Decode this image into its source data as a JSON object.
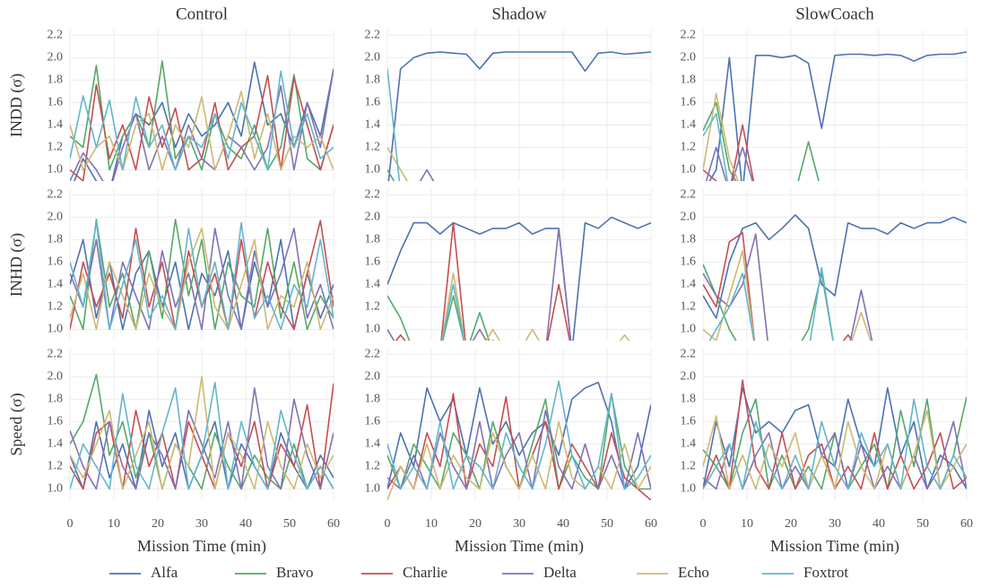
{
  "chart_data": {
    "type": "line",
    "columns": [
      "Control",
      "Shadow",
      "SlowCoach"
    ],
    "rows": [
      "INDD (σ)",
      "INHD (σ)",
      "Speed (σ)"
    ],
    "xlabel": "Mission Time (min)",
    "x": [
      0,
      3,
      6,
      9,
      12,
      15,
      18,
      21,
      24,
      27,
      30,
      33,
      36,
      39,
      42,
      45,
      48,
      51,
      54,
      57,
      60
    ],
    "xlim": [
      0,
      60
    ],
    "xticks": [
      0,
      10,
      20,
      30,
      40,
      50,
      60
    ],
    "ylim": [
      0.9,
      2.25
    ],
    "yticks": [
      {
        "value": 1,
        "label": "1.0"
      },
      1.2,
      1.4,
      1.6,
      1.8,
      {
        "value": 2,
        "label": "2.0"
      },
      2.2
    ],
    "grid": true,
    "series": [
      {
        "name": "Alfa",
        "color": "#4c72b0"
      },
      {
        "name": "Bravo",
        "color": "#55a868"
      },
      {
        "name": "Charlie",
        "color": "#c44e52"
      },
      {
        "name": "Delta",
        "color": "#8172b2"
      },
      {
        "name": "Echo",
        "color": "#ccb974"
      },
      {
        "name": "Foxtrot",
        "color": "#64b5cd"
      }
    ],
    "panels": [
      [
        [
          0.8,
          1.1,
          0.9,
          0.8,
          1.3,
          1.5,
          1.4,
          1.6,
          1.2,
          1.5,
          1.3,
          1.4,
          1.6,
          1.3,
          1.96,
          1.4,
          1.5,
          1.2,
          1.6,
          1.3,
          1.9
        ],
        [
          1.3,
          1.2,
          1.93,
          1.0,
          1.3,
          1.5,
          1.2,
          1.97,
          1.1,
          1.3,
          1.0,
          1.5,
          1.2,
          1.1,
          1.4,
          1.0,
          1.2,
          1.85,
          1.1,
          1.0,
          1.4
        ],
        [
          1.0,
          0.9,
          1.76,
          1.1,
          1.4,
          1.0,
          1.65,
          1.2,
          1.55,
          1.0,
          1.1,
          1.6,
          1.0,
          1.2,
          1.3,
          1.84,
          1.0,
          1.82,
          1.4,
          1.0,
          1.4
        ],
        [
          0.9,
          1.15,
          1.0,
          0.8,
          1.2,
          1.5,
          1.0,
          1.3,
          1.0,
          1.4,
          1.1,
          1.0,
          1.3,
          1.2,
          1.0,
          1.2,
          1.75,
          1.0,
          1.6,
          1.2,
          1.9
        ],
        [
          1.4,
          1.0,
          1.2,
          1.3,
          1.0,
          1.4,
          1.5,
          1.0,
          1.4,
          1.2,
          1.65,
          1.0,
          1.3,
          1.7,
          1.1,
          1.5,
          1.0,
          1.3,
          1.2,
          1.3,
          1.0
        ],
        [
          1.1,
          1.66,
          1.2,
          1.62,
          1.0,
          1.65,
          1.2,
          1.4,
          1.0,
          1.3,
          1.2,
          1.5,
          1.1,
          1.6,
          1.3,
          1.0,
          1.88,
          1.2,
          1.5,
          1.1,
          1.2
        ]
      ],
      [
        [
          0.8,
          1.9,
          2.0,
          2.04,
          2.05,
          2.04,
          2.03,
          1.9,
          2.04,
          2.05,
          2.05,
          2.05,
          2.05,
          2.05,
          2.05,
          1.88,
          2.04,
          2.05,
          2.03,
          2.04,
          2.05
        ],
        [
          1.0,
          0.8,
          0.8,
          0.8,
          0.8,
          0.8,
          0.8,
          0.8,
          0.8,
          0.8,
          0.8,
          0.8,
          0.8,
          0.8,
          0.8,
          0.8,
          0.8,
          0.8,
          0.8,
          0.8,
          0.8
        ],
        [
          0.8,
          0.8,
          0.8,
          0.8,
          0.8,
          0.8,
          0.8,
          0.8,
          0.8,
          0.8,
          0.8,
          0.8,
          0.8,
          0.8,
          0.8,
          0.8,
          0.8,
          0.8,
          0.8,
          0.8,
          0.8
        ],
        [
          0.8,
          0.8,
          0.8,
          1.0,
          0.8,
          0.8,
          0.8,
          0.8,
          0.8,
          0.8,
          0.8,
          0.8,
          0.8,
          0.8,
          0.8,
          0.8,
          0.8,
          0.8,
          0.8,
          0.8,
          0.8
        ],
        [
          1.2,
          1.0,
          0.8,
          0.8,
          0.8,
          0.8,
          0.8,
          0.8,
          0.8,
          0.8,
          0.8,
          0.8,
          0.8,
          0.8,
          0.8,
          0.8,
          0.8,
          0.8,
          0.8,
          0.8,
          0.8
        ],
        [
          1.9,
          0.8,
          0.8,
          0.8,
          0.8,
          0.8,
          0.8,
          0.8,
          0.8,
          0.8,
          0.8,
          0.8,
          0.8,
          0.8,
          0.8,
          0.8,
          0.8,
          0.8,
          0.8,
          0.8,
          0.8
        ]
      ],
      [
        [
          0.8,
          1.0,
          2.0,
          0.8,
          2.02,
          2.02,
          2.0,
          2.02,
          1.95,
          1.37,
          2.02,
          2.03,
          2.03,
          2.02,
          2.03,
          2.02,
          1.97,
          2.02,
          2.03,
          2.03,
          2.05
        ],
        [
          1.35,
          1.6,
          1.0,
          0.8,
          0.8,
          0.8,
          0.8,
          0.8,
          1.25,
          0.8,
          0.8,
          0.8,
          0.8,
          0.8,
          0.8,
          0.8,
          0.8,
          0.8,
          0.8,
          0.8,
          0.8
        ],
        [
          1.0,
          0.9,
          0.8,
          1.4,
          0.8,
          0.8,
          0.8,
          0.8,
          0.8,
          0.8,
          0.8,
          0.8,
          0.8,
          0.8,
          0.8,
          0.8,
          0.8,
          0.8,
          0.8,
          0.8,
          0.8
        ],
        [
          0.8,
          1.2,
          0.8,
          1.2,
          0.8,
          0.8,
          0.8,
          0.8,
          0.8,
          0.8,
          0.8,
          0.8,
          0.8,
          0.8,
          0.8,
          0.8,
          0.8,
          0.8,
          0.8,
          0.8,
          0.8
        ],
        [
          1.0,
          1.68,
          1.1,
          0.8,
          0.8,
          0.8,
          0.8,
          0.8,
          0.8,
          0.8,
          0.8,
          0.8,
          0.8,
          0.8,
          0.8,
          0.8,
          0.8,
          0.8,
          0.8,
          0.8,
          0.8
        ],
        [
          1.3,
          1.5,
          0.8,
          0.8,
          0.8,
          0.8,
          0.8,
          0.8,
          0.8,
          0.8,
          0.8,
          0.8,
          0.8,
          0.8,
          0.8,
          0.8,
          0.8,
          0.8,
          0.8,
          0.8,
          0.8
        ]
      ],
      [
        [
          1.4,
          1.8,
          1.1,
          1.6,
          1.0,
          1.5,
          1.7,
          1.2,
          1.6,
          1.0,
          1.5,
          1.3,
          1.7,
          1.0,
          1.6,
          1.2,
          1.8,
          1.0,
          1.5,
          1.1,
          1.4
        ],
        [
          1.3,
          1.0,
          1.98,
          1.2,
          1.5,
          1.0,
          1.7,
          1.1,
          1.98,
          1.3,
          1.8,
          1.0,
          1.6,
          1.3,
          1.2,
          1.9,
          1.1,
          1.6,
          1.0,
          1.3,
          1.1
        ],
        [
          1.0,
          1.6,
          1.2,
          1.5,
          1.1,
          1.9,
          1.2,
          1.6,
          1.0,
          1.7,
          1.2,
          1.5,
          1.0,
          1.8,
          1.1,
          1.6,
          1.2,
          1.0,
          1.5,
          1.97,
          1.2
        ],
        [
          1.5,
          1.2,
          1.8,
          1.0,
          1.6,
          1.3,
          1.0,
          1.7,
          1.2,
          1.5,
          1.0,
          1.9,
          1.3,
          1.0,
          1.7,
          1.2,
          1.5,
          1.9,
          1.1,
          1.4,
          1.0
        ],
        [
          1.1,
          1.5,
          1.0,
          1.6,
          1.3,
          1.0,
          1.5,
          1.2,
          1.0,
          1.6,
          1.9,
          1.2,
          1.0,
          1.4,
          1.8,
          1.0,
          1.3,
          1.2,
          1.6,
          1.0,
          1.3
        ],
        [
          1.6,
          1.2,
          1.96,
          1.0,
          1.4,
          1.8,
          1.1,
          1.3,
          1.0,
          1.9,
          1.2,
          1.6,
          1.0,
          1.95,
          1.1,
          1.3,
          1.0,
          1.4,
          1.2,
          1.8,
          1.1
        ]
      ],
      [
        [
          1.4,
          1.7,
          1.95,
          1.95,
          1.85,
          1.95,
          1.9,
          1.85,
          1.9,
          1.9,
          1.95,
          1.85,
          1.9,
          1.9,
          0.8,
          1.95,
          1.9,
          2.0,
          1.95,
          1.9,
          1.95
        ],
        [
          1.3,
          1.1,
          0.8,
          0.8,
          0.8,
          1.3,
          0.8,
          1.15,
          0.8,
          0.8,
          0.8,
          0.8,
          0.8,
          0.8,
          0.8,
          0.8,
          0.8,
          0.8,
          0.8,
          0.8,
          0.8
        ],
        [
          0.8,
          0.95,
          0.8,
          0.8,
          0.8,
          1.95,
          0.8,
          0.8,
          0.9,
          0.8,
          0.8,
          0.8,
          0.8,
          1.4,
          0.8,
          0.8,
          0.8,
          0.8,
          0.8,
          0.8,
          0.8
        ],
        [
          1.0,
          0.8,
          0.8,
          0.8,
          0.8,
          0.8,
          0.8,
          1.0,
          0.8,
          0.8,
          0.8,
          0.8,
          0.8,
          1.9,
          0.8,
          0.8,
          0.8,
          0.8,
          0.8,
          0.8,
          0.8
        ],
        [
          0.8,
          0.8,
          0.8,
          0.8,
          0.8,
          1.5,
          0.8,
          0.8,
          1.0,
          0.8,
          0.8,
          1.0,
          0.8,
          0.8,
          0.8,
          0.8,
          0.8,
          0.8,
          0.95,
          0.8,
          0.8
        ],
        [
          0.8,
          0.8,
          0.8,
          0.8,
          0.8,
          1.4,
          0.8,
          0.8,
          0.8,
          0.8,
          0.8,
          0.8,
          0.8,
          0.8,
          0.8,
          0.8,
          0.8,
          0.8,
          0.8,
          0.8,
          0.8
        ]
      ],
      [
        [
          1.3,
          1.1,
          1.6,
          1.9,
          1.95,
          1.8,
          1.9,
          2.02,
          1.9,
          1.4,
          1.3,
          1.95,
          1.9,
          1.9,
          1.85,
          1.95,
          1.9,
          1.95,
          1.95,
          2.0,
          1.95
        ],
        [
          1.58,
          1.3,
          1.0,
          0.8,
          0.8,
          0.8,
          0.8,
          0.8,
          1.0,
          1.5,
          0.8,
          0.8,
          0.8,
          0.8,
          0.8,
          0.8,
          0.8,
          0.8,
          0.8,
          0.8,
          0.8
        ],
        [
          1.4,
          1.2,
          1.78,
          1.86,
          0.8,
          0.8,
          0.8,
          0.8,
          0.8,
          0.8,
          0.8,
          0.95,
          0.8,
          0.8,
          0.8,
          0.8,
          0.8,
          0.8,
          0.8,
          0.8,
          0.8
        ],
        [
          1.5,
          1.3,
          1.2,
          1.4,
          1.85,
          0.8,
          0.8,
          0.8,
          0.8,
          0.8,
          0.8,
          0.8,
          1.35,
          0.8,
          0.8,
          0.8,
          0.8,
          0.8,
          0.8,
          0.8,
          0.8
        ],
        [
          1.0,
          0.9,
          1.3,
          1.7,
          0.8,
          0.8,
          0.8,
          0.8,
          0.8,
          0.8,
          0.8,
          0.8,
          1.15,
          0.8,
          0.8,
          0.8,
          0.8,
          0.8,
          0.8,
          0.8,
          0.8
        ],
        [
          0.8,
          1.0,
          1.2,
          1.5,
          0.8,
          0.8,
          0.8,
          0.8,
          0.8,
          1.55,
          0.8,
          0.8,
          0.8,
          0.8,
          0.8,
          0.8,
          0.8,
          0.8,
          0.8,
          0.8,
          0.8
        ]
      ],
      [
        [
          1.3,
          1.0,
          1.6,
          1.1,
          1.4,
          1.0,
          1.7,
          1.2,
          1.5,
          1.0,
          1.3,
          1.6,
          1.0,
          1.4,
          1.2,
          1.0,
          1.5,
          1.2,
          1.0,
          1.3,
          1.1
        ],
        [
          1.4,
          1.6,
          2.02,
          1.3,
          1.6,
          1.1,
          1.5,
          1.0,
          1.4,
          1.2,
          1.0,
          1.5,
          1.2,
          1.0,
          1.3,
          1.1,
          1.0,
          1.4,
          1.0,
          1.2,
          1.0
        ],
        [
          1.2,
          1.0,
          1.5,
          1.6,
          1.0,
          1.7,
          1.2,
          1.5,
          1.0,
          1.6,
          1.3,
          1.0,
          1.5,
          1.2,
          1.6,
          1.0,
          1.4,
          1.2,
          1.75,
          1.0,
          1.94
        ],
        [
          1.52,
          1.2,
          1.0,
          1.6,
          1.2,
          1.0,
          1.5,
          1.3,
          1.0,
          1.7,
          1.4,
          1.1,
          1.6,
          1.0,
          1.9,
          1.2,
          1.0,
          1.8,
          1.3,
          1.0,
          1.5
        ],
        [
          1.3,
          1.1,
          1.4,
          1.7,
          1.0,
          1.3,
          1.6,
          1.0,
          1.4,
          1.2,
          2.0,
          1.0,
          1.5,
          1.3,
          1.0,
          1.6,
          1.2,
          1.0,
          1.4,
          1.1,
          1.3
        ],
        [
          1.0,
          1.4,
          1.2,
          1.0,
          1.85,
          1.2,
          1.0,
          1.5,
          1.9,
          1.0,
          1.3,
          1.95,
          1.0,
          1.6,
          1.2,
          1.0,
          1.7,
          1.3,
          1.0,
          1.2,
          1.0
        ]
      ],
      [
        [
          1.0,
          1.5,
          1.2,
          1.9,
          1.6,
          1.8,
          1.3,
          1.9,
          1.4,
          1.6,
          1.3,
          1.5,
          1.6,
          1.3,
          1.8,
          1.9,
          1.95,
          1.6,
          1.0,
          1.2,
          1.75
        ],
        [
          1.3,
          1.0,
          1.4,
          1.2,
          1.0,
          1.5,
          1.3,
          1.0,
          1.6,
          1.2,
          1.0,
          1.4,
          1.8,
          1.0,
          1.3,
          1.1,
          1.0,
          1.85,
          1.2,
          1.0,
          1.0
        ],
        [
          1.0,
          1.2,
          1.0,
          1.5,
          1.2,
          1.85,
          1.0,
          1.4,
          1.2,
          1.82,
          1.0,
          1.3,
          1.6,
          1.0,
          1.4,
          1.2,
          1.0,
          1.5,
          1.1,
          1.0,
          0.9
        ],
        [
          1.1,
          1.0,
          1.3,
          1.0,
          1.5,
          1.2,
          1.0,
          1.6,
          1.0,
          1.3,
          1.5,
          1.0,
          1.7,
          1.2,
          1.0,
          1.4,
          1.0,
          1.3,
          1.0,
          1.5,
          1.0
        ],
        [
          0.9,
          1.2,
          1.0,
          1.4,
          1.0,
          1.3,
          1.1,
          1.0,
          1.5,
          1.2,
          1.0,
          1.3,
          1.0,
          1.6,
          1.1,
          1.0,
          1.2,
          1.0,
          1.4,
          1.0,
          1.2
        ],
        [
          1.4,
          1.0,
          1.2,
          1.0,
          1.6,
          1.0,
          1.3,
          1.2,
          1.0,
          1.5,
          1.2,
          1.0,
          1.4,
          1.96,
          1.3,
          1.0,
          1.2,
          1.85,
          1.0,
          1.1,
          1.3
        ]
      ],
      [
        [
          1.0,
          1.6,
          1.2,
          1.9,
          1.5,
          1.6,
          1.5,
          1.7,
          1.75,
          1.3,
          1.2,
          1.8,
          1.4,
          1.2,
          1.9,
          1.3,
          1.6,
          1.0,
          1.3,
          1.2,
          1.0
        ],
        [
          1.35,
          1.2,
          1.0,
          1.5,
          1.8,
          1.0,
          1.3,
          1.0,
          1.2,
          1.0,
          1.5,
          1.0,
          1.2,
          1.4,
          1.0,
          1.7,
          1.2,
          1.8,
          1.0,
          1.3,
          1.82
        ],
        [
          1.0,
          1.3,
          1.0,
          1.97,
          1.2,
          1.0,
          1.5,
          1.0,
          1.3,
          1.4,
          1.0,
          1.2,
          1.0,
          1.5,
          1.0,
          1.3,
          1.0,
          1.2,
          1.5,
          1.0,
          1.1
        ],
        [
          1.1,
          1.0,
          1.4,
          1.0,
          1.3,
          1.5,
          1.0,
          1.2,
          1.0,
          1.3,
          1.5,
          1.0,
          1.4,
          1.0,
          1.2,
          1.0,
          1.3,
          1.0,
          1.2,
          1.6,
          1.0
        ],
        [
          1.2,
          1.65,
          1.0,
          1.3,
          1.0,
          1.4,
          1.2,
          1.5,
          1.0,
          1.3,
          1.0,
          1.6,
          1.2,
          1.0,
          1.4,
          1.0,
          1.3,
          1.7,
          1.0,
          1.2,
          1.4
        ],
        [
          1.0,
          1.2,
          1.4,
          1.0,
          1.6,
          1.2,
          1.0,
          1.3,
          1.0,
          1.6,
          1.2,
          1.0,
          1.5,
          1.2,
          1.4,
          1.0,
          1.8,
          1.2,
          1.0,
          1.3,
          1.1
        ]
      ]
    ]
  }
}
